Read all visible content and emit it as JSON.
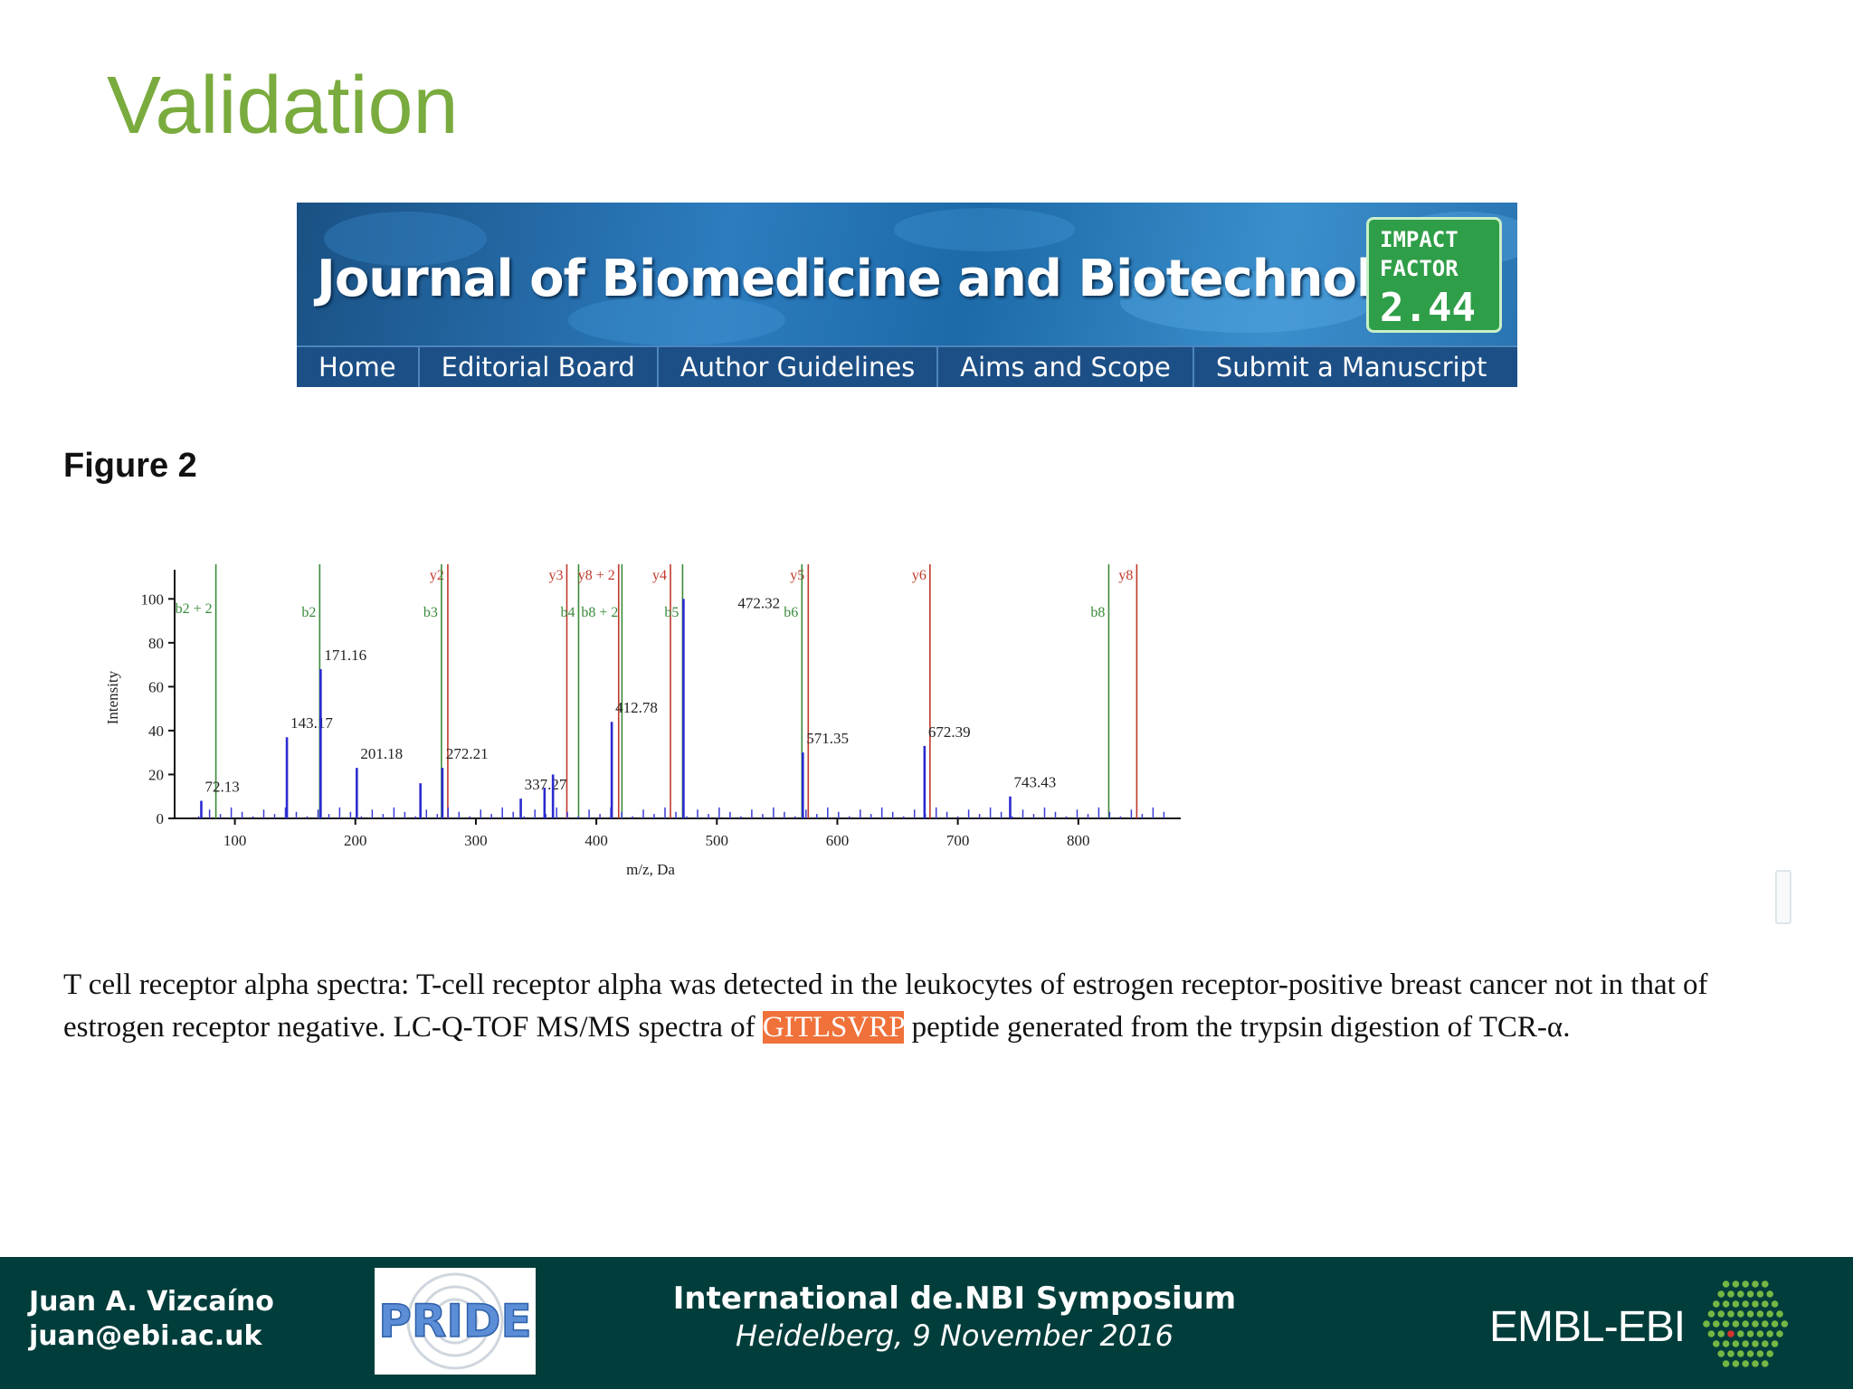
{
  "slide": {
    "title": "Validation"
  },
  "journal": {
    "name": "Journal of Biomedicine and Biotechnology",
    "impact_label_1": "IMPACT",
    "impact_label_2": "FACTOR",
    "impact_value": "2.44",
    "nav": [
      "Home",
      "Editorial Board",
      "Author Guidelines",
      "Aims and Scope",
      "Submit a Manuscript"
    ]
  },
  "figure": {
    "label": "Figure 2",
    "caption_before": "T cell receptor alpha spectra: T-cell receptor alpha was detected in the leukocytes of estrogen receptor-positive breast cancer not in that of estrogen receptor negative. LC-Q-TOF MS/MS spectra of ",
    "caption_highlight": "GITLSVRP",
    "caption_after": " peptide generated from the trypsin digestion of TCR-α."
  },
  "chart_data": {
    "type": "bar",
    "xlabel": "m/z, Da",
    "ylabel": "Intensity",
    "xlim": [
      50,
      885
    ],
    "ylim": [
      0,
      110
    ],
    "xticks": [
      100,
      200,
      300,
      400,
      500,
      600,
      700,
      800
    ],
    "yticks": [
      0,
      20,
      40,
      60,
      80,
      100
    ],
    "peaks": [
      {
        "x": 72.13,
        "y": 8,
        "label": "72.13"
      },
      {
        "x": 143.17,
        "y": 37,
        "label": "143.17"
      },
      {
        "x": 171.16,
        "y": 68,
        "label": "171.16"
      },
      {
        "x": 201.18,
        "y": 23,
        "label": "201.18"
      },
      {
        "x": 254,
        "y": 16,
        "label": ""
      },
      {
        "x": 272.21,
        "y": 23,
        "label": "272.21"
      },
      {
        "x": 337.27,
        "y": 9,
        "label": "337.27"
      },
      {
        "x": 357,
        "y": 14,
        "label": ""
      },
      {
        "x": 364,
        "y": 20,
        "label": ""
      },
      {
        "x": 412.78,
        "y": 44,
        "label": "412.78"
      },
      {
        "x": 472.32,
        "y": 100,
        "label": "472.32"
      },
      {
        "x": 571.35,
        "y": 30,
        "label": "571.35"
      },
      {
        "x": 672.39,
        "y": 33,
        "label": "672.39"
      },
      {
        "x": 743.43,
        "y": 10,
        "label": "743.43"
      }
    ],
    "ion_lines": [
      {
        "x": 85,
        "color": "#3a8a3a",
        "label": "b2 + 2"
      },
      {
        "x": 171.16,
        "color": "#3a8a3a",
        "label": "b2"
      },
      {
        "x": 272.21,
        "color": "#c0392b",
        "label": "y2"
      },
      {
        "x": 272.21,
        "color": "#3a8a3a",
        "label": "b3"
      },
      {
        "x": 371,
        "color": "#c0392b",
        "label": "y3"
      },
      {
        "x": 386,
        "color": "#3a8a3a",
        "label": "b4"
      },
      {
        "x": 414,
        "color": "#c0392b",
        "label": "y8 + 2"
      },
      {
        "x": 422,
        "color": "#3a8a3a",
        "label": "b8 + 2"
      },
      {
        "x": 457,
        "color": "#c0392b",
        "label": "y4"
      },
      {
        "x": 472.32,
        "color": "#3a8a3a",
        "label": "b5"
      },
      {
        "x": 571.35,
        "color": "#c0392b",
        "label": "y5"
      },
      {
        "x": 571.35,
        "color": "#3a8a3a",
        "label": "b6"
      },
      {
        "x": 672.39,
        "color": "#c0392b",
        "label": "y6"
      },
      {
        "x": 826,
        "color": "#3a8a3a",
        "label": "b8"
      },
      {
        "x": 844,
        "color": "#c0392b",
        "label": "y8"
      }
    ]
  },
  "footer": {
    "author": "Juan A. Vizcaíno",
    "email": "juan@ebi.ac.uk",
    "logo_text": "PRIDE",
    "event": "International de.NBI Symposium",
    "event_sub": "Heidelberg, 9 November 2016",
    "org": "EMBL-EBI"
  }
}
